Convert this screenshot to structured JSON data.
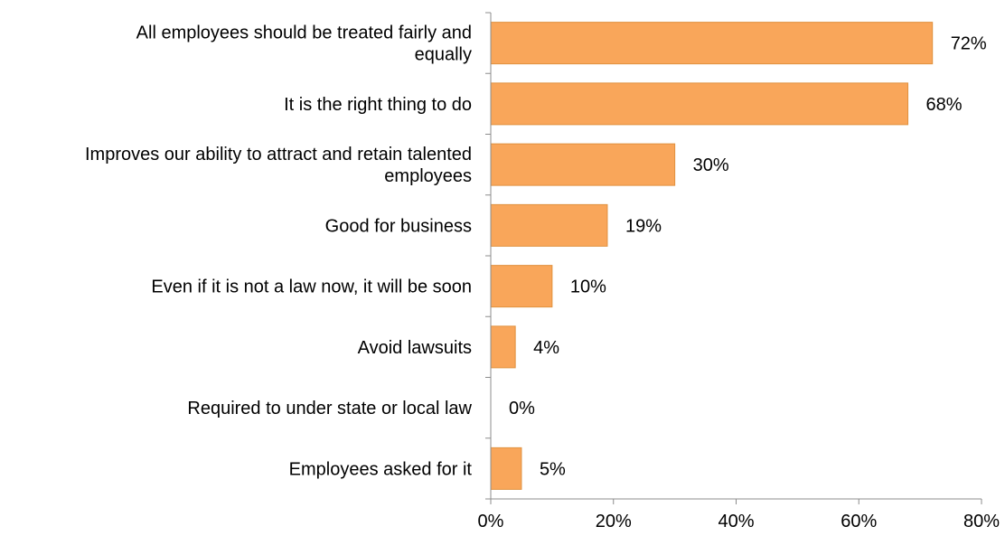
{
  "chart_data": {
    "type": "bar",
    "orientation": "horizontal",
    "categories": [
      [
        "All employees should be treated fairly and",
        "equally"
      ],
      [
        "It is the right thing to do"
      ],
      [
        "Improves our ability to attract and retain talented",
        "employees"
      ],
      [
        "Good for business"
      ],
      [
        "Even if it is not a law now, it will be soon"
      ],
      [
        "Avoid lawsuits"
      ],
      [
        "Required to under state or local law"
      ],
      [
        "Employees asked for it"
      ]
    ],
    "values": [
      72,
      68,
      30,
      19,
      10,
      4,
      0,
      5
    ],
    "value_labels": [
      "72%",
      "68%",
      "30%",
      "19%",
      "10%",
      "4%",
      "0%",
      "5%"
    ],
    "xlim": [
      0,
      80
    ],
    "xticks": [
      0,
      20,
      40,
      60,
      80
    ],
    "xtick_labels": [
      "0%",
      "20%",
      "40%",
      "60%",
      "80%"
    ],
    "grid": false,
    "legend": "none",
    "bar_color": "#F9A65A",
    "bar_edge_color": "#E0913F",
    "axis_color": "#8C8C8C"
  }
}
